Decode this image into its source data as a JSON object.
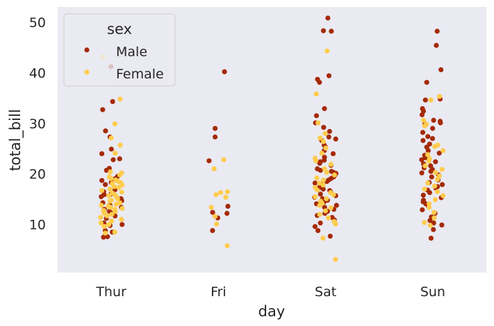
{
  "chart_data": {
    "type": "scatter",
    "subtype": "stripplot",
    "xlabel": "day",
    "ylabel": "total_bill",
    "categories": [
      "Thur",
      "Fri",
      "Sat",
      "Sun"
    ],
    "ylim": [
      0.5,
      53
    ],
    "yticks": [
      10,
      20,
      30,
      40,
      50
    ],
    "grid": false,
    "background": "#eaeaf2",
    "legend": {
      "title": "sex",
      "placement": "top-left",
      "entries": [
        "Male",
        "Female"
      ]
    },
    "series": [
      {
        "name": "Male",
        "color": "#a52a05",
        "values": {
          "Thur": [
            41.2,
            34.3,
            32.7,
            28.5,
            27.3,
            24.9,
            24.0,
            23.0,
            22.8,
            21.1,
            20.7,
            19.5,
            19.0,
            18.7,
            18.3,
            17.9,
            16.9,
            16.5,
            16.2,
            16.0,
            15.9,
            15.5,
            15.1,
            14.7,
            14.3,
            13.8,
            13.4,
            13.0,
            12.6,
            12.2,
            11.7,
            11.2,
            10.3,
            10.0,
            9.8,
            8.8,
            8.5,
            7.6,
            7.5
          ],
          "Fri": [
            40.2,
            29.0,
            27.3,
            22.6,
            13.6,
            12.4,
            12.2,
            11.3,
            8.8
          ],
          "Sat": [
            50.8,
            48.3,
            48.2,
            39.4,
            38.7,
            38.1,
            32.9,
            31.5,
            30.1,
            29.2,
            28.4,
            27.3,
            26.9,
            26.6,
            25.7,
            25.3,
            24.6,
            24.0,
            23.3,
            22.7,
            22.4,
            22.1,
            21.7,
            21.0,
            20.7,
            20.5,
            20.3,
            20.1,
            19.8,
            19.4,
            19.1,
            18.8,
            18.5,
            18.2,
            17.9,
            17.6,
            17.3,
            17.0,
            16.7,
            16.4,
            16.0,
            15.7,
            15.4,
            15.1,
            14.8,
            14.5,
            14.1,
            13.8,
            13.4,
            13.0,
            12.6,
            12.2,
            11.8,
            11.4,
            10.9,
            10.3,
            9.6,
            8.8,
            7.7
          ],
          "Sun": [
            48.2,
            45.4,
            40.6,
            38.1,
            34.8,
            34.6,
            32.9,
            32.4,
            31.7,
            30.6,
            30.4,
            30.1,
            29.9,
            29.0,
            28.2,
            27.4,
            27.0,
            26.6,
            25.9,
            25.3,
            24.6,
            24.1,
            23.7,
            23.2,
            22.8,
            22.4,
            22.0,
            21.6,
            21.2,
            20.9,
            20.5,
            20.2,
            19.8,
            19.4,
            18.8,
            18.3,
            17.9,
            17.5,
            17.2,
            16.8,
            16.3,
            15.8,
            15.3,
            14.8,
            14.5,
            14.1,
            13.6,
            12.9,
            12.2,
            11.5,
            10.8,
            10.3,
            9.9,
            9.0,
            7.3
          ]
        }
      },
      {
        "name": "Female",
        "color": "#ffcc4d",
        "values": {
          "Thur": [
            43.1,
            34.8,
            29.9,
            27.1,
            25.7,
            24.1,
            20.4,
            20.2,
            19.8,
            19.4,
            19.1,
            18.8,
            18.6,
            18.3,
            18.1,
            17.8,
            17.5,
            17.3,
            17.0,
            16.7,
            16.4,
            16.2,
            15.9,
            15.7,
            15.4,
            15.1,
            14.8,
            14.6,
            14.3,
            14.0,
            13.8,
            13.6,
            13.4,
            13.2,
            13.0,
            12.8,
            12.6,
            12.4,
            12.2,
            12.0,
            11.7,
            11.4,
            11.0,
            10.7,
            10.3,
            10.0,
            9.6,
            8.5,
            8.3
          ],
          "Fri": [
            22.8,
            21.0,
            16.5,
            16.3,
            15.9,
            15.4,
            13.4,
            11.6,
            10.1,
            5.8
          ],
          "Sat": [
            44.3,
            35.8,
            30.1,
            28.0,
            27.1,
            26.4,
            25.1,
            24.1,
            23.1,
            22.6,
            21.9,
            21.0,
            20.3,
            19.8,
            19.2,
            18.8,
            18.2,
            17.8,
            17.3,
            16.8,
            16.3,
            15.9,
            15.5,
            15.1,
            14.6,
            14.2,
            13.8,
            13.3,
            12.7,
            12.0,
            11.3,
            10.6,
            10.1,
            7.3,
            3.1
          ],
          "Sun": [
            35.3,
            34.6,
            30.6,
            29.8,
            29.5,
            25.7,
            25.4,
            24.6,
            23.8,
            23.0,
            22.5,
            21.6,
            20.9,
            20.3,
            19.6,
            18.9,
            18.2,
            17.6,
            17.0,
            16.5,
            15.7,
            14.9,
            14.1,
            13.4,
            12.4,
            11.3,
            10.4,
            9.8
          ]
        }
      }
    ]
  }
}
